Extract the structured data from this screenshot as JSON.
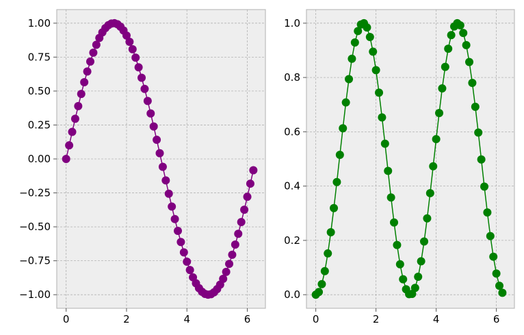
{
  "chart_data": [
    {
      "type": "line",
      "marker": "circle",
      "grid": true,
      "title": "",
      "xlabel": "",
      "ylabel": "",
      "xlim": [
        -0.31,
        6.6
      ],
      "ylim": [
        -1.1,
        1.1
      ],
      "xticks": [
        0,
        2,
        4,
        6
      ],
      "xtick_labels": [
        "0",
        "2",
        "4",
        "6"
      ],
      "yticks": [
        -1.0,
        -0.75,
        -0.5,
        -0.25,
        0.0,
        0.25,
        0.5,
        0.75,
        1.0
      ],
      "ytick_labels": [
        "−1.00",
        "−0.75",
        "−0.50",
        "−0.25",
        "0.00",
        "0.25",
        "0.50",
        "0.75",
        "1.00"
      ],
      "series": [
        {
          "color": "#800080",
          "x": [
            0.0,
            0.1,
            0.2,
            0.3,
            0.4,
            0.5,
            0.6,
            0.7,
            0.8,
            0.9,
            1.0,
            1.1,
            1.2,
            1.3,
            1.4,
            1.5,
            1.6,
            1.7,
            1.8,
            1.9,
            2.0,
            2.1,
            2.2,
            2.3,
            2.4,
            2.5,
            2.6,
            2.7,
            2.8,
            2.9,
            3.0,
            3.1,
            3.2,
            3.3,
            3.4,
            3.5,
            3.6,
            3.7,
            3.8,
            3.9,
            4.0,
            4.1,
            4.2,
            4.3,
            4.4,
            4.5,
            4.6,
            4.7,
            4.8,
            4.9,
            5.0,
            5.1,
            5.2,
            5.3,
            5.4,
            5.5,
            5.6,
            5.7,
            5.8,
            5.9,
            6.0,
            6.1,
            6.2
          ],
          "y": [
            0.0,
            0.1,
            0.199,
            0.296,
            0.389,
            0.479,
            0.565,
            0.644,
            0.717,
            0.783,
            0.841,
            0.891,
            0.932,
            0.964,
            0.985,
            0.997,
            1.0,
            0.992,
            0.974,
            0.946,
            0.909,
            0.863,
            0.808,
            0.746,
            0.675,
            0.598,
            0.516,
            0.427,
            0.335,
            0.239,
            0.141,
            0.042,
            -0.058,
            -0.158,
            -0.256,
            -0.351,
            -0.443,
            -0.53,
            -0.612,
            -0.688,
            -0.757,
            -0.818,
            -0.872,
            -0.916,
            -0.952,
            -0.978,
            -0.994,
            -1.0,
            -0.996,
            -0.982,
            -0.959,
            -0.926,
            -0.883,
            -0.832,
            -0.773,
            -0.706,
            -0.631,
            -0.551,
            -0.465,
            -0.374,
            -0.279,
            -0.182,
            -0.083
          ]
        }
      ]
    },
    {
      "type": "line",
      "marker": "circle",
      "grid": true,
      "title": "",
      "xlabel": "",
      "ylabel": "",
      "xlim": [
        -0.31,
        6.6
      ],
      "ylim": [
        -0.05,
        1.05
      ],
      "xticks": [
        0,
        2,
        4,
        6
      ],
      "xtick_labels": [
        "0",
        "2",
        "4",
        "6"
      ],
      "yticks": [
        0.0,
        0.2,
        0.4,
        0.6,
        0.8,
        1.0
      ],
      "ytick_labels": [
        "0.0",
        "0.2",
        "0.4",
        "0.6",
        "0.8",
        "1.0"
      ],
      "series": [
        {
          "color": "#008000",
          "x": [
            0.0,
            0.1,
            0.2,
            0.3,
            0.4,
            0.5,
            0.6,
            0.7,
            0.8,
            0.9,
            1.0,
            1.1,
            1.2,
            1.3,
            1.4,
            1.5,
            1.6,
            1.7,
            1.8,
            1.9,
            2.0,
            2.1,
            2.2,
            2.3,
            2.4,
            2.5,
            2.6,
            2.7,
            2.8,
            2.9,
            3.0,
            3.1,
            3.2,
            3.3,
            3.4,
            3.5,
            3.6,
            3.7,
            3.8,
            3.9,
            4.0,
            4.1,
            4.2,
            4.3,
            4.4,
            4.5,
            4.6,
            4.7,
            4.8,
            4.9,
            5.0,
            5.1,
            5.2,
            5.3,
            5.4,
            5.5,
            5.6,
            5.7,
            5.8,
            5.9,
            6.0,
            6.1,
            6.2
          ],
          "y": [
            0.0,
            0.01,
            0.039,
            0.087,
            0.152,
            0.23,
            0.319,
            0.415,
            0.515,
            0.613,
            0.708,
            0.794,
            0.869,
            0.929,
            0.971,
            0.995,
            1.0,
            0.984,
            0.949,
            0.895,
            0.827,
            0.744,
            0.653,
            0.556,
            0.456,
            0.358,
            0.266,
            0.183,
            0.112,
            0.057,
            0.02,
            0.002,
            0.003,
            0.025,
            0.066,
            0.123,
            0.196,
            0.281,
            0.374,
            0.473,
            0.573,
            0.669,
            0.76,
            0.839,
            0.906,
            0.956,
            0.988,
            1.0,
            0.992,
            0.964,
            0.919,
            0.857,
            0.78,
            0.692,
            0.597,
            0.498,
            0.398,
            0.303,
            0.216,
            0.14,
            0.078,
            0.033,
            0.007
          ]
        }
      ]
    }
  ]
}
